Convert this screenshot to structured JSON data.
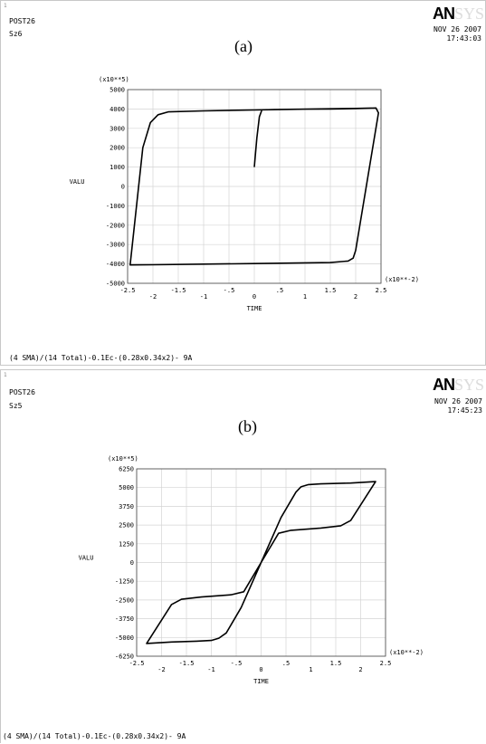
{
  "panels": [
    {
      "window_number": "1",
      "program": "POST26",
      "variable": "Sz6",
      "label": "(a)",
      "logo_strong": "AN",
      "logo_faded": "SYS",
      "date": "NOV 26 2007",
      "time": "17:43:03",
      "footer": "(4 SMA)/(14 Total)-0.1Ec-(0.28x0.34x2)- 9A"
    },
    {
      "window_number": "1",
      "program": "POST26",
      "variable": "Sz5",
      "label": "(b)",
      "logo_strong": "AN",
      "logo_faded": "SYS",
      "date": "NOV 26 2007",
      "time": "17:45:23",
      "footer": "(4 SMA)/(14 Total)-0.1Ec-(0.28x0.34x2)- 9A"
    }
  ],
  "chart_data": [
    {
      "type": "line",
      "title": "(a)",
      "xlabel": "TIME",
      "ylabel": "VALU",
      "x_multiplier": "(x10**-2)",
      "y_multiplier": "(x10**5)",
      "xlim": [
        -2.5,
        2.5
      ],
      "ylim": [
        -5000,
        5000
      ],
      "x_ticks": [
        -2.5,
        -2,
        -1.5,
        -1,
        -0.5,
        0,
        0.5,
        1,
        1.5,
        2,
        2.5
      ],
      "x_tick_labels": [
        "-2.5",
        "-2",
        "-1.5",
        "-1",
        "-.5",
        "0",
        ".5",
        "1",
        "1.5",
        "2",
        "2.5"
      ],
      "y_ticks": [
        5000,
        4000,
        3000,
        2000,
        1000,
        0,
        -1000,
        -2000,
        -3000,
        -4000,
        -5000
      ],
      "y_tick_labels": [
        "5000",
        "4000",
        "3000",
        "2000",
        "1000",
        "0",
        "-1000",
        "-2000",
        "-3000",
        "-4000",
        "-5000"
      ],
      "grid": true,
      "series": [
        {
          "x": [
            0.0,
            0.05,
            0.1,
            0.15,
            0.4,
            1.0,
            1.5,
            2.0,
            2.4,
            2.45,
            2.0,
            1.95,
            1.85,
            1.5,
            0.0,
            -1.0,
            -2.0,
            -2.45,
            -2.2,
            -2.05,
            -1.9,
            -1.7,
            -1.0,
            0.0,
            1.0,
            2.0,
            2.4
          ],
          "y": [
            1000,
            2500,
            3600,
            3950,
            3970,
            3990,
            4000,
            4020,
            4050,
            3800,
            -3300,
            -3700,
            -3850,
            -3930,
            -3980,
            -4010,
            -4040,
            -4050,
            2000,
            3300,
            3700,
            3850,
            3900,
            3950,
            3990,
            4030,
            4050
          ]
        }
      ]
    },
    {
      "type": "line",
      "title": "(b)",
      "xlabel": "TIME",
      "ylabel": "VALU",
      "x_multiplier": "(x10**-2)",
      "y_multiplier": "(x10**5)",
      "xlim": [
        -2.5,
        2.5
      ],
      "ylim": [
        -6250,
        6250
      ],
      "x_ticks": [
        -2.5,
        -2,
        -1.5,
        -1,
        -0.5,
        0,
        0.5,
        1,
        1.5,
        2,
        2.5
      ],
      "x_tick_labels": [
        "-2.5",
        "-2",
        "-1.5",
        "-1",
        "-.5",
        "0",
        ".5",
        "1",
        "1.5",
        "2",
        "2.5"
      ],
      "y_ticks": [
        6250,
        5000,
        3750,
        2500,
        1250,
        0,
        -1250,
        -2500,
        -3750,
        -5000,
        -6250
      ],
      "y_tick_labels": [
        "6250",
        "5000",
        "3750",
        "2500",
        "1250",
        "0",
        "-1250",
        "-2500",
        "-3750",
        "-5000",
        "-6250"
      ],
      "grid": true,
      "series": [
        {
          "x": [
            0.0,
            0.4,
            0.7,
            0.8,
            0.95,
            1.2,
            1.8,
            2.3,
            1.8,
            1.6,
            1.2,
            0.6,
            0.35,
            0.0,
            -0.4,
            -0.7,
            -0.85,
            -1.0,
            -1.3,
            -1.8,
            -2.3,
            -1.8,
            -1.6,
            -1.2,
            -0.6,
            -0.35,
            0.0
          ],
          "y": [
            0,
            3000,
            4700,
            5050,
            5200,
            5250,
            5300,
            5400,
            2800,
            2450,
            2300,
            2150,
            1950,
            0,
            -3000,
            -4700,
            -5050,
            -5200,
            -5250,
            -5300,
            -5400,
            -2800,
            -2450,
            -2300,
            -2150,
            -1950,
            0
          ]
        }
      ]
    }
  ]
}
